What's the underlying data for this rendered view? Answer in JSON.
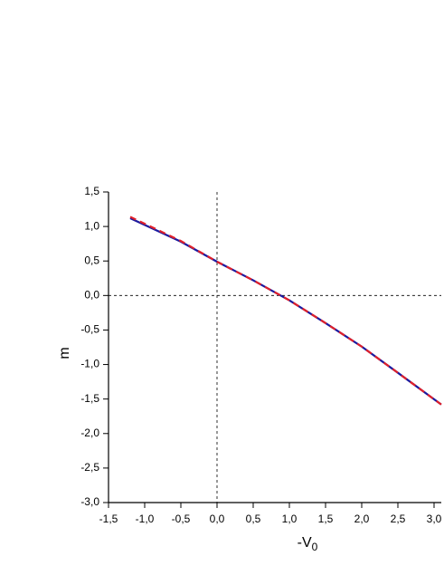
{
  "chart_data": {
    "type": "line",
    "xlabel": {
      "text": "-V",
      "subscript": "0"
    },
    "ylabel": "m",
    "xlim": [
      -1.5,
      3.1
    ],
    "ylim": [
      -3.0,
      1.5
    ],
    "xticks": [
      {
        "value": -1.5,
        "label": "-1,5"
      },
      {
        "value": -1.0,
        "label": "-1,0"
      },
      {
        "value": -0.5,
        "label": "-0,5"
      },
      {
        "value": 0,
        "label": "0,0"
      },
      {
        "value": 0.5,
        "label": "0,5"
      },
      {
        "value": 1.0,
        "label": "1,0"
      },
      {
        "value": 1.5,
        "label": "1,5"
      },
      {
        "value": 2.0,
        "label": "2,0"
      },
      {
        "value": 2.5,
        "label": "2,5"
      },
      {
        "value": 3.0,
        "label": "3,0"
      }
    ],
    "yticks": [
      {
        "value": -3.0,
        "label": "-3,0"
      },
      {
        "value": -2.5,
        "label": "-2,5"
      },
      {
        "value": -2.0,
        "label": "-2,0"
      },
      {
        "value": -1.5,
        "label": "-1,5"
      },
      {
        "value": -1.0,
        "label": "-1,0"
      },
      {
        "value": -0.5,
        "label": "-0,5"
      },
      {
        "value": 0,
        "label": "0,0"
      },
      {
        "value": 0.5,
        "label": "0,5"
      },
      {
        "value": 1.0,
        "label": "1,0"
      },
      {
        "value": 1.5,
        "label": "1,5"
      }
    ],
    "zero_lines": true,
    "x": [
      -1.2,
      -0.5,
      0,
      0.5,
      1.0,
      1.5,
      2.0,
      2.5,
      3.1
    ],
    "series": [
      {
        "color": "#1a1aa0",
        "dashed": false,
        "values": [
          1.12,
          0.78,
          0.49,
          0.22,
          -0.07,
          -0.4,
          -0.74,
          -1.12,
          -1.58
        ]
      },
      {
        "color": "#e0202a",
        "dashed": true,
        "values": [
          1.14,
          0.79,
          0.49,
          0.22,
          -0.07,
          -0.4,
          -0.74,
          -1.12,
          -1.58
        ]
      }
    ]
  }
}
